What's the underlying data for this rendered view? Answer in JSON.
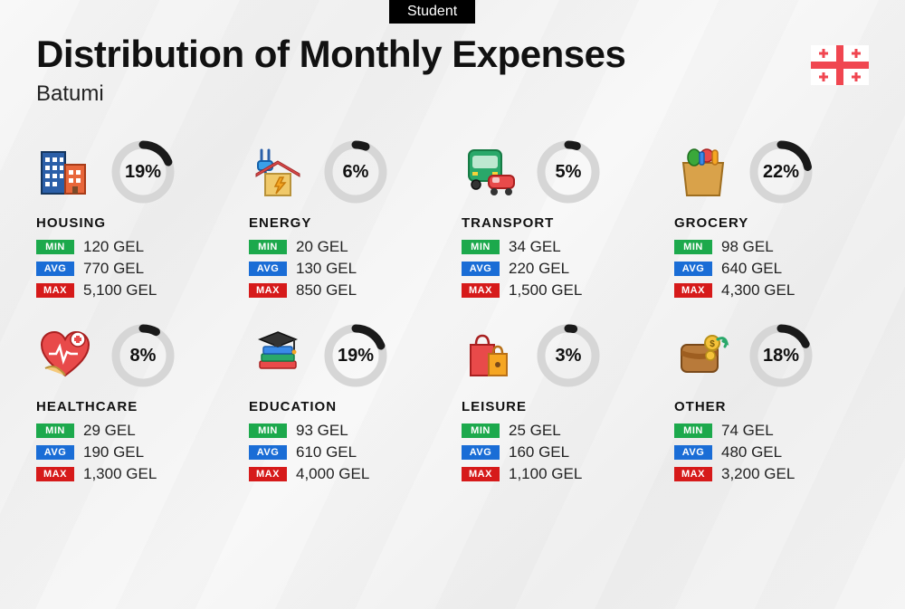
{
  "badge": "Student",
  "title": "Distribution of Monthly Expenses",
  "subtitle": "Batumi",
  "currency": "GEL",
  "labels": {
    "min": "MIN",
    "avg": "AVG",
    "max": "MAX"
  },
  "tag_colors": {
    "min": "#1ca94c",
    "avg": "#1a6dd6",
    "max": "#d61a1a"
  },
  "donut": {
    "track_color": "#d6d6d6",
    "progress_color": "#1a1a1a",
    "stroke_width": 9,
    "radius": 30
  },
  "flag": {
    "bg": "#ffffff",
    "cross": "#f04650"
  },
  "categories": [
    {
      "key": "housing",
      "name": "HOUSING",
      "percent": 19,
      "min": "120 GEL",
      "avg": "770 GEL",
      "max": "5,100 GEL"
    },
    {
      "key": "energy",
      "name": "ENERGY",
      "percent": 6,
      "min": "20 GEL",
      "avg": "130 GEL",
      "max": "850 GEL"
    },
    {
      "key": "transport",
      "name": "TRANSPORT",
      "percent": 5,
      "min": "34 GEL",
      "avg": "220 GEL",
      "max": "1,500 GEL"
    },
    {
      "key": "grocery",
      "name": "GROCERY",
      "percent": 22,
      "min": "98 GEL",
      "avg": "640 GEL",
      "max": "4,300 GEL"
    },
    {
      "key": "healthcare",
      "name": "HEALTHCARE",
      "percent": 8,
      "min": "29 GEL",
      "avg": "190 GEL",
      "max": "1,300 GEL"
    },
    {
      "key": "education",
      "name": "EDUCATION",
      "percent": 19,
      "min": "93 GEL",
      "avg": "610 GEL",
      "max": "4,000 GEL"
    },
    {
      "key": "leisure",
      "name": "LEISURE",
      "percent": 3,
      "min": "25 GEL",
      "avg": "160 GEL",
      "max": "1,100 GEL"
    },
    {
      "key": "other",
      "name": "OTHER",
      "percent": 18,
      "min": "74 GEL",
      "avg": "480 GEL",
      "max": "3,200 GEL"
    }
  ]
}
